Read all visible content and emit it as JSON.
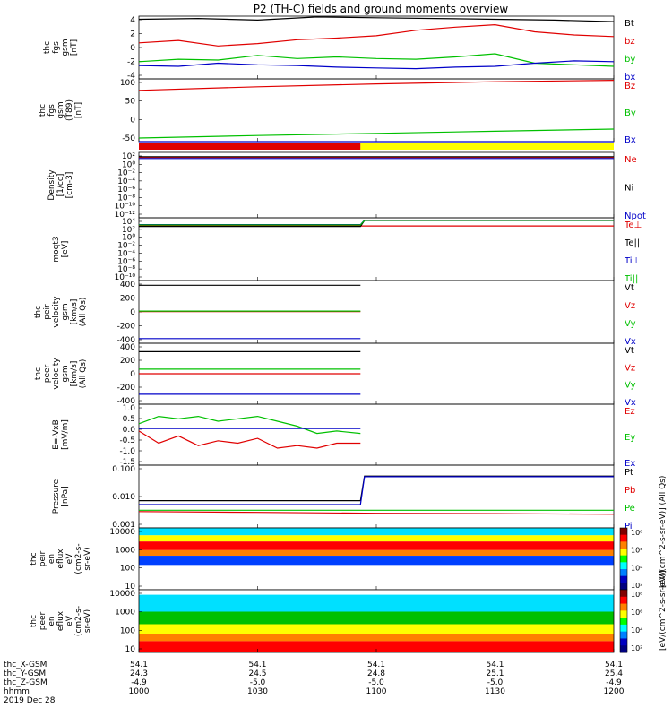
{
  "title": "P2 (TH-C) fields and ground moments overview",
  "colors": {
    "black": "#000000",
    "red": "#e00000",
    "green": "#00c000",
    "blue": "#0000c8",
    "yellow": "#ffff00"
  },
  "chart_data": [
    {
      "type": "line",
      "ylabel_lines": [
        "thc",
        "fgs",
        "gsm",
        "[nT]"
      ],
      "ylim": [
        -4,
        4
      ],
      "yticks": [
        "4",
        "2",
        "0",
        "-2",
        "-4"
      ],
      "legend": [
        {
          "name": "Bt",
          "color": "black"
        },
        {
          "name": "bz",
          "color": "red"
        },
        {
          "name": "by",
          "color": "green"
        },
        {
          "name": "bx",
          "color": "blue"
        }
      ],
      "series": [
        {
          "name": "Bt",
          "x": [
            0,
            15,
            30,
            45,
            60,
            75,
            90,
            105,
            120
          ],
          "values": [
            3.6,
            3.7,
            3.5,
            3.9,
            3.8,
            3.7,
            3.6,
            3.5,
            3.3
          ]
        },
        {
          "name": "bz",
          "x": [
            0,
            10,
            20,
            30,
            40,
            50,
            60,
            70,
            80,
            90,
            100,
            110,
            120
          ],
          "values": [
            0.6,
            0.9,
            0.2,
            0.5,
            1.0,
            1.2,
            1.5,
            2.2,
            2.6,
            2.9,
            2.0,
            1.6,
            1.4
          ]
        },
        {
          "name": "by",
          "x": [
            0,
            10,
            20,
            30,
            40,
            50,
            60,
            70,
            80,
            90,
            100,
            110,
            120
          ],
          "values": [
            -1.8,
            -1.5,
            -1.6,
            -1.0,
            -1.4,
            -1.2,
            -1.4,
            -1.5,
            -1.2,
            -0.8,
            -2.0,
            -2.2,
            -2.4
          ]
        },
        {
          "name": "bx",
          "x": [
            0,
            10,
            20,
            30,
            40,
            50,
            60,
            70,
            80,
            90,
            100,
            110,
            120
          ],
          "values": [
            -2.3,
            -2.4,
            -2.0,
            -2.2,
            -2.3,
            -2.5,
            -2.6,
            -2.7,
            -2.5,
            -2.4,
            -2.0,
            -1.7,
            -1.8
          ]
        }
      ]
    },
    {
      "type": "line",
      "ylabel_lines": [
        "thc",
        "fgs",
        "gsm",
        "(T89)",
        "[nT]"
      ],
      "ylim": [
        -75,
        100
      ],
      "yticks": [
        "100",
        "50",
        "0",
        "-50"
      ],
      "legend": [
        {
          "name": "Bz",
          "color": "red"
        },
        {
          "name": "By",
          "color": "green"
        },
        {
          "name": "Bx",
          "color": "blue"
        }
      ],
      "series": [
        {
          "name": "Bz",
          "x": [
            0,
            30,
            60,
            90,
            120
          ],
          "values": [
            68,
            78,
            86,
            92,
            96
          ]
        },
        {
          "name": "By",
          "x": [
            0,
            30,
            60,
            90,
            120
          ],
          "values": [
            -65,
            -58,
            -52,
            -46,
            -40
          ]
        },
        {
          "name": "Bx",
          "x": [
            0,
            120
          ],
          "values": [
            -75,
            -75
          ]
        }
      ]
    },
    {
      "type": "line",
      "ylabel_lines": [
        "Density",
        "[1/cc]",
        "[cm-3]"
      ],
      "yscale": "log",
      "ylim": [
        1e-12,
        100.0
      ],
      "yticks": [
        "10²",
        "10⁰",
        "10⁻²",
        "10⁻⁴",
        "10⁻⁶",
        "10⁻⁸",
        "10⁻¹⁰",
        "10⁻¹²"
      ],
      "legend": [
        {
          "name": "Ne",
          "color": "red"
        },
        {
          "name": "Ni",
          "color": "black"
        },
        {
          "name": "Npot",
          "color": "blue"
        }
      ],
      "series": [
        {
          "name": "Ne",
          "x": [
            0,
            120
          ],
          "values": [
            8,
            8
          ]
        },
        {
          "name": "Ni",
          "x": [
            0,
            120
          ],
          "values": [
            12,
            12
          ]
        },
        {
          "name": "Npot",
          "x": [
            0,
            120
          ],
          "values": [
            5,
            5
          ]
        }
      ]
    },
    {
      "type": "line",
      "ylabel_lines": [
        "moqt3",
        "[eV]"
      ],
      "yscale": "log",
      "ylim": [
        1e-10,
        10000.0
      ],
      "yticks": [
        "10⁴",
        "10²",
        "10⁰",
        "10⁻²",
        "10⁻⁴",
        "10⁻⁶",
        "10⁻⁸",
        "10⁻¹⁰"
      ],
      "legend": [
        {
          "name": "Te⊥",
          "color": "red"
        },
        {
          "name": "Te||",
          "color": "black"
        },
        {
          "name": "Ti⊥",
          "color": "blue"
        },
        {
          "name": "Ti||",
          "color": "green"
        }
      ],
      "series": [
        {
          "name": "Te⊥",
          "x": [
            0,
            120
          ],
          "values": [
            150,
            150
          ]
        },
        {
          "name": "Te||",
          "x": [
            0,
            56,
            57,
            120
          ],
          "values": [
            120,
            120,
            2500,
            2500
          ]
        },
        {
          "name": "Ti⊥",
          "x": [
            0,
            56,
            57,
            120
          ],
          "values": [
            300,
            300,
            3000,
            3000
          ]
        },
        {
          "name": "Ti||",
          "x": [
            0,
            56,
            57,
            120
          ],
          "values": [
            250,
            250,
            2800,
            2800
          ]
        }
      ]
    },
    {
      "type": "line",
      "ylabel_lines": [
        "thc",
        "peir",
        "velocity",
        "gsm",
        "[km/s]",
        "(All Qs)"
      ],
      "ylim": [
        -400,
        400
      ],
      "yticks": [
        "400",
        "200",
        "0",
        "-200",
        "-400"
      ],
      "legend": [
        {
          "name": "Vt",
          "color": "black"
        },
        {
          "name": "Vz",
          "color": "red"
        },
        {
          "name": "Vy",
          "color": "green"
        },
        {
          "name": "Vx",
          "color": "blue"
        }
      ],
      "series": [
        {
          "name": "Vt",
          "x": [
            0,
            56
          ],
          "values": [
            340,
            340
          ]
        },
        {
          "name": "Vz",
          "x": [
            0,
            56
          ],
          "values": [
            5,
            5
          ]
        },
        {
          "name": "Vy",
          "x": [
            0,
            56
          ],
          "values": [
            10,
            10
          ]
        },
        {
          "name": "Vx",
          "x": [
            0,
            56
          ],
          "values": [
            -340,
            -340
          ]
        }
      ]
    },
    {
      "type": "line",
      "ylabel_lines": [
        "thc",
        "peer",
        "velocity",
        "gsm",
        "[km/s]",
        "(All Qs)"
      ],
      "ylim": [
        -400,
        400
      ],
      "yticks": [
        "400",
        "200",
        "0",
        "-200",
        "-400"
      ],
      "legend": [
        {
          "name": "Vt",
          "color": "black"
        },
        {
          "name": "Vz",
          "color": "red"
        },
        {
          "name": "Vy",
          "color": "green"
        },
        {
          "name": "Vx",
          "color": "blue"
        }
      ],
      "series": [
        {
          "name": "Vt",
          "x": [
            0,
            56
          ],
          "values": [
            290,
            290
          ]
        },
        {
          "name": "Vz",
          "x": [
            0,
            56
          ],
          "values": [
            0,
            0
          ]
        },
        {
          "name": "Vy",
          "x": [
            0,
            56
          ],
          "values": [
            60,
            60
          ]
        },
        {
          "name": "Vx",
          "x": [
            0,
            56
          ],
          "values": [
            -270,
            -270
          ]
        }
      ]
    },
    {
      "type": "line",
      "ylabel_lines": [
        "E=-VxB",
        "[mV/m]"
      ],
      "ylim": [
        -1.5,
        1.0
      ],
      "yticks": [
        "1.0",
        "0.5",
        "0.0",
        "-0.5",
        "-1.0",
        "-1.5"
      ],
      "legend": [
        {
          "name": "Ez",
          "color": "red"
        },
        {
          "name": "Ey",
          "color": "green"
        },
        {
          "name": "Ex",
          "color": "blue"
        }
      ],
      "series": [
        {
          "name": "Ez",
          "x": [
            0,
            5,
            10,
            15,
            20,
            25,
            30,
            35,
            40,
            45,
            50,
            56
          ],
          "values": [
            -0.1,
            -0.6,
            -0.3,
            -0.7,
            -0.5,
            -0.6,
            -0.4,
            -0.8,
            -0.7,
            -0.8,
            -0.6,
            -0.6
          ]
        },
        {
          "name": "Ey",
          "x": [
            0,
            5,
            10,
            15,
            20,
            25,
            30,
            35,
            40,
            45,
            50,
            56
          ],
          "values": [
            0.2,
            0.5,
            0.4,
            0.5,
            0.3,
            0.4,
            0.5,
            0.3,
            0.1,
            -0.2,
            -0.1,
            -0.2
          ]
        },
        {
          "name": "Ex",
          "x": [
            0,
            56
          ],
          "values": [
            0.0,
            0.0
          ]
        }
      ]
    },
    {
      "type": "line",
      "ylabel_lines": [
        "Pressure",
        "[nPa]"
      ],
      "yscale": "log",
      "ylim": [
        0.001,
        1.0
      ],
      "yticks": [
        "0.100",
        "0.010",
        "0.001"
      ],
      "legend": [
        {
          "name": "Pt",
          "color": "black"
        },
        {
          "name": "Pb",
          "color": "red"
        },
        {
          "name": "Pe",
          "color": "green"
        },
        {
          "name": "Pi",
          "color": "blue"
        }
      ],
      "series": [
        {
          "name": "Pt",
          "x": [
            0,
            56,
            57,
            120
          ],
          "values": [
            0.02,
            0.02,
            0.3,
            0.3
          ]
        },
        {
          "name": "Pb",
          "x": [
            0,
            30,
            60,
            90,
            120
          ],
          "values": [
            0.006,
            0.0055,
            0.005,
            0.0048,
            0.0045
          ]
        },
        {
          "name": "Pe",
          "x": [
            0,
            120
          ],
          "values": [
            0.007,
            0.007
          ]
        },
        {
          "name": "Pi",
          "x": [
            0,
            56,
            57,
            120
          ],
          "values": [
            0.013,
            0.013,
            0.28,
            0.28
          ]
        }
      ]
    },
    {
      "type": "heatmap",
      "ylabel_lines": [
        "thc",
        "peir",
        "en",
        "eflux",
        "eV",
        "(cm2-s-",
        "sr-eV)"
      ],
      "yscale": "log",
      "ylim": [
        5,
        20000
      ],
      "yticks": [
        "10000",
        "1000",
        "100",
        "10"
      ],
      "colorbar_label": "[eV/(cm^2-s-sr-eV)] (All Qs)",
      "colorbar_ticks": [
        "10⁸",
        "10⁶",
        "10⁴",
        "10²"
      ]
    },
    {
      "type": "heatmap",
      "ylabel_lines": [
        "thc",
        "peer",
        "en",
        "eflux",
        "eV",
        "(cm2-s-",
        "sr-eV)"
      ],
      "yscale": "log",
      "ylim": [
        5,
        20000
      ],
      "yticks": [
        "10000",
        "1000",
        "100",
        "10"
      ],
      "colorbar_label": "[eV/(cm^2-s-sr-eV)]",
      "colorbar_ticks": [
        "10⁸",
        "10⁶",
        "10⁴",
        "10²"
      ]
    }
  ],
  "xaxis": {
    "row_labels": [
      "thc_X-GSM",
      "thc_Y-GSM",
      "thc_Z-GSM",
      "hhmm",
      "2019 Dec 28"
    ],
    "ticks": [
      {
        "x": 0,
        "vals": [
          "54.1",
          "24.3",
          "-4.9",
          "1000"
        ]
      },
      {
        "x": 30,
        "vals": [
          "54.1",
          "24.5",
          "-5.0",
          "1030"
        ]
      },
      {
        "x": 60,
        "vals": [
          "54.1",
          "24.8",
          "-5.0",
          "1100"
        ]
      },
      {
        "x": 90,
        "vals": [
          "54.1",
          "25.1",
          "-5.0",
          "1130"
        ]
      },
      {
        "x": 120,
        "vals": [
          "54.1",
          "25.4",
          "-4.9",
          "1200"
        ]
      }
    ]
  },
  "mode_bar": [
    {
      "from": 0,
      "to": 56,
      "color": "red"
    },
    {
      "from": 56,
      "to": 120,
      "color": "yellow"
    }
  ]
}
